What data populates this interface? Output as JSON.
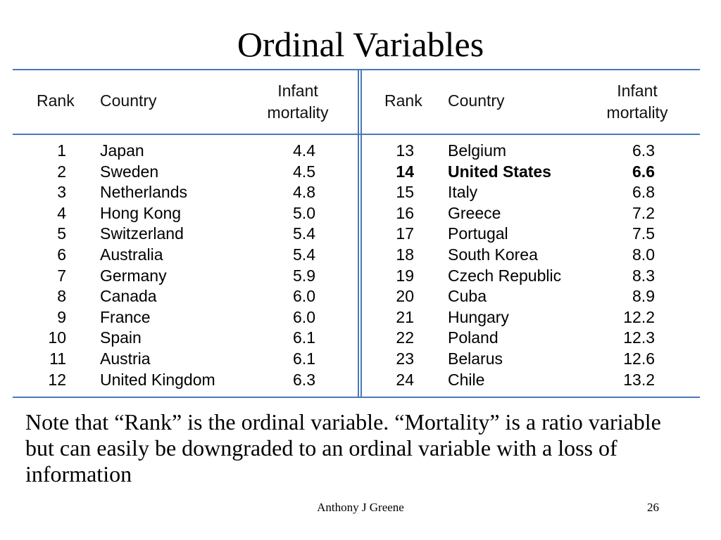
{
  "slide": {
    "title": "Ordinal Variables",
    "note": "Note that “Rank” is the ordinal variable.  “Mortality” is a ratio variable but can easily be downgraded to an ordinal variable with a loss of information",
    "footer_author": "Anthony J Greene",
    "page_number": "26"
  },
  "table": {
    "headers": {
      "rank": "Rank",
      "country": "Country",
      "mortality_line1": "Infant",
      "mortality_line2": "mortality"
    },
    "left_rows": [
      {
        "rank": "1",
        "country": "Japan",
        "mortality": "4.4"
      },
      {
        "rank": "2",
        "country": "Sweden",
        "mortality": "4.5"
      },
      {
        "rank": "3",
        "country": "Netherlands",
        "mortality": "4.8"
      },
      {
        "rank": "4",
        "country": "Hong Kong",
        "mortality": "5.0"
      },
      {
        "rank": "5",
        "country": "Switzerland",
        "mortality": "5.4"
      },
      {
        "rank": "6",
        "country": "Australia",
        "mortality": "5.4"
      },
      {
        "rank": "7",
        "country": "Germany",
        "mortality": "5.9"
      },
      {
        "rank": "8",
        "country": "Canada",
        "mortality": "6.0"
      },
      {
        "rank": "9",
        "country": "France",
        "mortality": "6.0"
      },
      {
        "rank": "10",
        "country": "Spain",
        "mortality": "6.1"
      },
      {
        "rank": "11",
        "country": "Austria",
        "mortality": "6.1"
      },
      {
        "rank": "12",
        "country": "United Kingdom",
        "mortality": "6.3"
      }
    ],
    "right_rows": [
      {
        "rank": "13",
        "country": "Belgium",
        "mortality": "6.3"
      },
      {
        "rank": "14",
        "country": "United States",
        "mortality": "6.6",
        "bold": true
      },
      {
        "rank": "15",
        "country": "Italy",
        "mortality": "6.8"
      },
      {
        "rank": "16",
        "country": "Greece",
        "mortality": "7.2"
      },
      {
        "rank": "17",
        "country": "Portugal",
        "mortality": "7.5"
      },
      {
        "rank": "18",
        "country": "South Korea",
        "mortality": "8.0"
      },
      {
        "rank": "19",
        "country": "Czech Republic",
        "mortality": "8.3"
      },
      {
        "rank": "20",
        "country": "Cuba",
        "mortality": "8.9"
      },
      {
        "rank": "21",
        "country": "Hungary",
        "mortality": "12.2"
      },
      {
        "rank": "22",
        "country": "Poland",
        "mortality": "12.3"
      },
      {
        "rank": "23",
        "country": "Belarus",
        "mortality": "12.6"
      },
      {
        "rank": "24",
        "country": "Chile",
        "mortality": "13.2"
      }
    ]
  },
  "colors": {
    "rule_color": "#4a78b8"
  }
}
